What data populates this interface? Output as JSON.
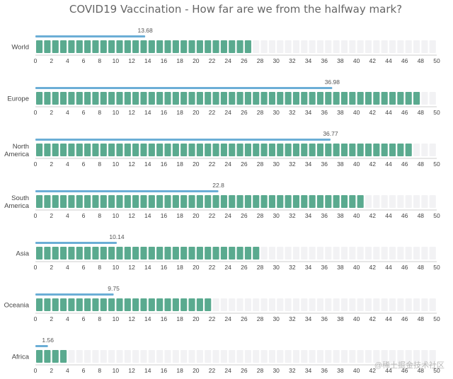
{
  "chart_data": {
    "type": "bar",
    "title": "COVID19 Vaccination - How far are we from the halfway mark?",
    "xlim": [
      0,
      50
    ],
    "x_ticks": [
      0,
      2,
      4,
      6,
      8,
      10,
      12,
      14,
      16,
      18,
      20,
      22,
      24,
      26,
      28,
      30,
      32,
      34,
      36,
      38,
      40,
      42,
      44,
      46,
      48,
      50
    ],
    "categories": [
      {
        "label": [
          "World"
        ],
        "value": 13.68,
        "value_label": "13.68",
        "filled_blocks": 27
      },
      {
        "label": [
          "Europe"
        ],
        "value": 36.98,
        "value_label": "36.98",
        "filled_blocks": 48
      },
      {
        "label": [
          "North",
          "America"
        ],
        "value": 36.77,
        "value_label": "36.77",
        "filled_blocks": 47
      },
      {
        "label": [
          "South",
          "America"
        ],
        "value": 22.8,
        "value_label": "22.8",
        "filled_blocks": 41
      },
      {
        "label": [
          "Asia"
        ],
        "value": 10.14,
        "value_label": "10.14",
        "filled_blocks": 28
      },
      {
        "label": [
          "Oceania"
        ],
        "value": 9.75,
        "value_label": "9.75",
        "filled_blocks": 22
      },
      {
        "label": [
          "Africa"
        ],
        "value": 1.56,
        "value_label": "1.56",
        "filled_blocks": 4
      }
    ],
    "total_blocks": 50,
    "colors": {
      "filled_block": "#5aaa8f",
      "empty_block": "#f2f2f4",
      "value_bar": "#6baed6",
      "axis": "#cccccc",
      "title": "#666666"
    },
    "grid": false
  },
  "watermark": "@稀土掘金技术社区"
}
